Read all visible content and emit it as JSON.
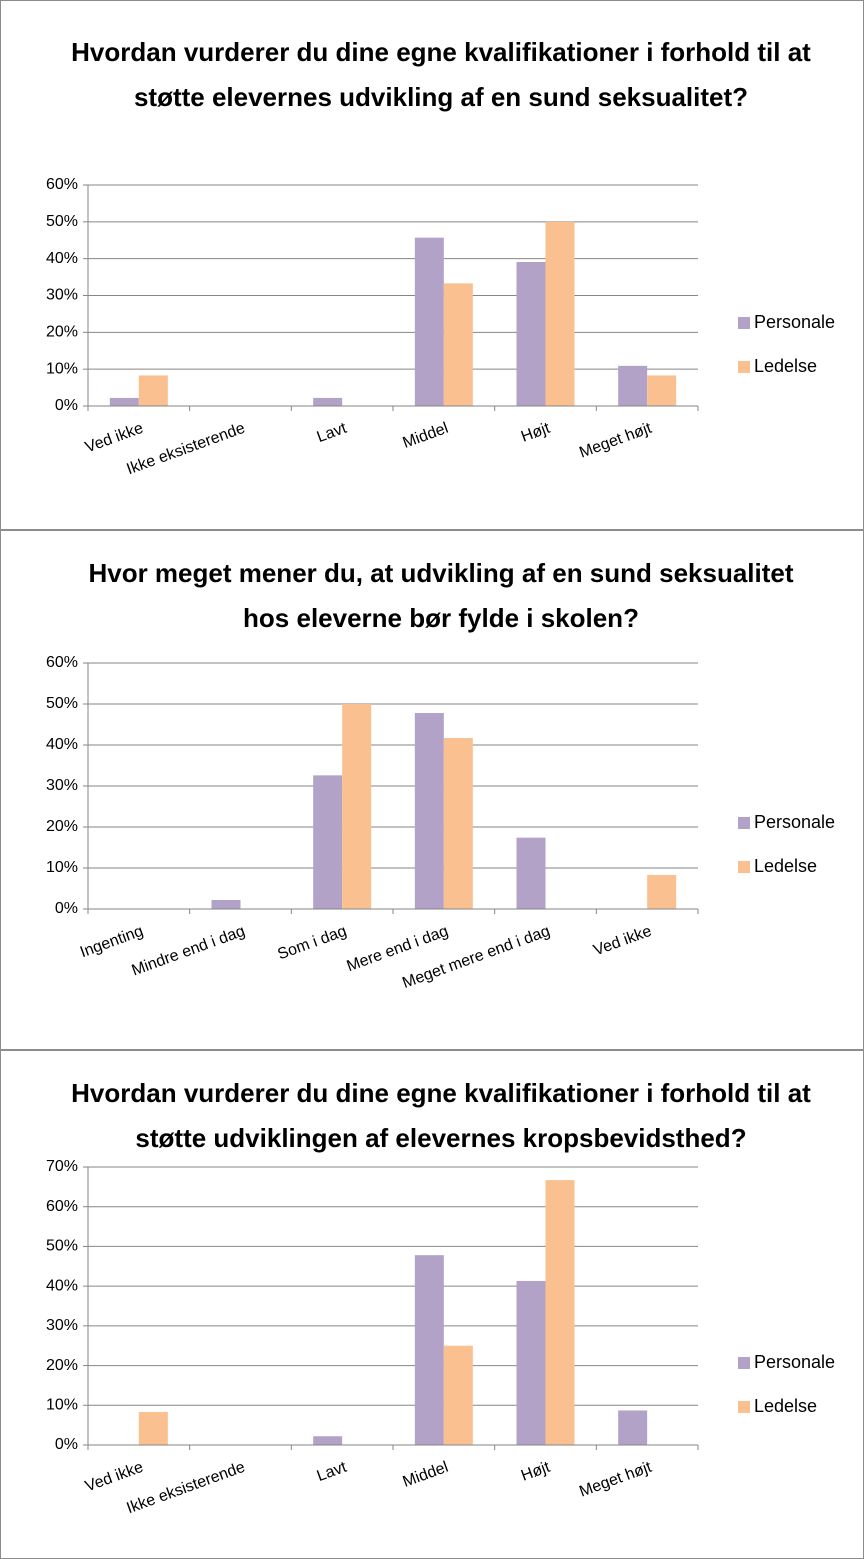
{
  "chart_data": [
    {
      "type": "bar",
      "title": "Hvordan vurderer du dine egne kvalifikationer i forhold til at støtte elevernes udvikling af en sund seksualitet?",
      "categories": [
        "Ved ikke",
        "Ikke eksisterende",
        "Lavt",
        "Middel",
        "Højt",
        "Meget højt"
      ],
      "series": [
        {
          "name": "Personale",
          "color": "#b3a2c7",
          "values": [
            2.2,
            0,
            2.2,
            45.7,
            39.1,
            10.9
          ]
        },
        {
          "name": "Ledelse",
          "color": "#fac090",
          "values": [
            8.3,
            0,
            0,
            33.3,
            50,
            8.3
          ]
        }
      ],
      "ylim": [
        0,
        60
      ],
      "yticks": [
        {
          "value": 0,
          "label": "0%"
        },
        {
          "value": 10,
          "label": "10%"
        },
        {
          "value": 20,
          "label": "20%"
        },
        {
          "value": 30,
          "label": "30%"
        },
        {
          "value": 40,
          "label": "40%"
        },
        {
          "value": 50,
          "label": "50%"
        },
        {
          "value": 60,
          "label": "60%"
        }
      ],
      "grid": true,
      "legend": "right"
    },
    {
      "type": "bar",
      "title": "Hvor meget mener du, at udvikling af en sund seksualitet hos eleverne bør fylde i skolen?",
      "categories": [
        "Ingenting",
        "Mindre end i dag",
        "Som i dag",
        "Mere end i dag",
        "Meget mere end i dag",
        "Ved ikke"
      ],
      "series": [
        {
          "name": "Personale",
          "color": "#b3a2c7",
          "values": [
            0,
            2.2,
            32.6,
            47.8,
            17.4,
            0
          ]
        },
        {
          "name": "Ledelse",
          "color": "#fac090",
          "values": [
            0,
            0,
            50,
            41.7,
            0,
            8.3
          ]
        }
      ],
      "ylim": [
        0,
        60
      ],
      "yticks": [
        {
          "value": 0,
          "label": "0%"
        },
        {
          "value": 10,
          "label": "10%"
        },
        {
          "value": 20,
          "label": "20%"
        },
        {
          "value": 30,
          "label": "30%"
        },
        {
          "value": 40,
          "label": "40%"
        },
        {
          "value": 50,
          "label": "50%"
        },
        {
          "value": 60,
          "label": "60%"
        }
      ],
      "grid": true,
      "legend": "right"
    },
    {
      "type": "bar",
      "title": "Hvordan vurderer du dine egne kvalifikationer i forhold til at støtte udviklingen af elevernes kropsbevidsthed?",
      "categories": [
        "Ved ikke",
        "Ikke eksisterende",
        "Lavt",
        "Middel",
        "Højt",
        "Meget højt"
      ],
      "series": [
        {
          "name": "Personale",
          "color": "#b3a2c7",
          "values": [
            0,
            0,
            2.2,
            47.8,
            41.3,
            8.7
          ]
        },
        {
          "name": "Ledelse",
          "color": "#fac090",
          "values": [
            8.3,
            0,
            0,
            25,
            66.7,
            0
          ]
        }
      ],
      "ylim": [
        0,
        70
      ],
      "yticks": [
        {
          "value": 0,
          "label": "0%"
        },
        {
          "value": 10,
          "label": "10%"
        },
        {
          "value": 20,
          "label": "20%"
        },
        {
          "value": 30,
          "label": "30%"
        },
        {
          "value": 40,
          "label": "40%"
        },
        {
          "value": 50,
          "label": "50%"
        },
        {
          "value": 60,
          "label": "60%"
        },
        {
          "value": 70,
          "label": "70%"
        }
      ],
      "grid": true,
      "legend": "right"
    }
  ]
}
